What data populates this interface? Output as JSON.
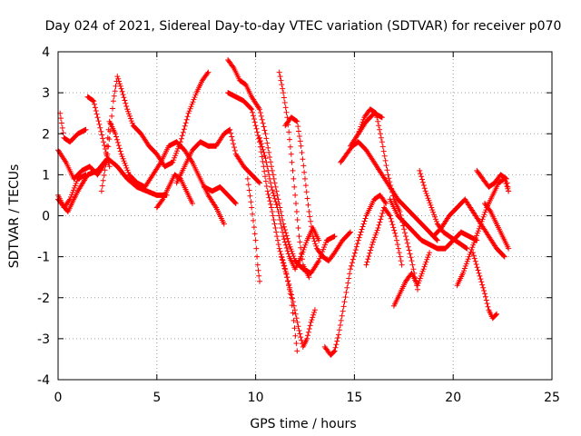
{
  "chart_data": {
    "type": "scatter",
    "title": "Day 024 of 2021, Sidereal Day-to-day VTEC variation (SDTVAR) for receiver p070",
    "xlabel": "GPS time / hours",
    "ylabel": "SDTVAR / TECUs",
    "xlim": [
      0,
      25
    ],
    "ylim": [
      -4,
      4
    ],
    "xticks": [
      0,
      5,
      10,
      15,
      20,
      25
    ],
    "yticks": [
      -4,
      -3,
      -2,
      -1,
      0,
      1,
      2,
      3,
      4
    ],
    "xtick_labels": [
      "0",
      "5",
      "10",
      "15",
      "20",
      "25"
    ],
    "ytick_labels": [
      "-4",
      "-3",
      "-2",
      "-1",
      "0",
      "1",
      "2",
      "3",
      "4"
    ],
    "grid": true,
    "marker": "+",
    "color": "#ff0000",
    "series": [
      {
        "name": "s1",
        "x": [
          0.0,
          0.4,
          0.8,
          1.2,
          1.6,
          2.0,
          2.4,
          2.6,
          2.9,
          3.2,
          3.6,
          4.0,
          4.4,
          4.8,
          5.2,
          5.6,
          6.0,
          6.4,
          6.8,
          7.2,
          7.6,
          8.0,
          8.4
        ],
        "y": [
          1.6,
          1.3,
          0.9,
          1.1,
          1.2,
          1.0,
          1.3,
          2.3,
          2.0,
          1.5,
          1.0,
          0.8,
          0.7,
          1.0,
          1.3,
          1.7,
          1.8,
          1.6,
          1.3,
          0.9,
          0.5,
          0.2,
          -0.2
        ]
      },
      {
        "name": "s2",
        "x": [
          0.0,
          0.3,
          0.6,
          1.0,
          1.4
        ],
        "y": [
          0.5,
          0.2,
          0.4,
          0.9,
          1.0
        ]
      },
      {
        "name": "s3",
        "x": [
          0.1,
          0.3,
          0.6,
          1.0,
          1.4
        ],
        "y": [
          2.5,
          1.9,
          1.8,
          2.0,
          2.1
        ]
      },
      {
        "name": "s4",
        "x": [
          0.0,
          0.5,
          1.0,
          1.5,
          2.0,
          2.5,
          3.0,
          3.5,
          4.0,
          4.5,
          5.0,
          5.5
        ],
        "y": [
          0.4,
          0.1,
          0.6,
          1.0,
          1.1,
          1.4,
          1.2,
          0.9,
          0.7,
          0.6,
          0.5,
          0.5
        ]
      },
      {
        "name": "s5",
        "x": [
          1.5,
          1.8,
          2.0,
          2.3,
          2.6
        ],
        "y": [
          2.9,
          2.8,
          2.4,
          1.8,
          1.2
        ]
      },
      {
        "name": "s6",
        "x": [
          2.2,
          2.5,
          2.8,
          3.0,
          3.2,
          3.5,
          3.8,
          4.2,
          4.6,
          5.0,
          5.4,
          5.8,
          6.2,
          6.6,
          7.0,
          7.3,
          7.6
        ],
        "y": [
          0.6,
          1.5,
          2.8,
          3.4,
          3.1,
          2.6,
          2.2,
          2.0,
          1.7,
          1.5,
          1.2,
          1.3,
          1.8,
          2.5,
          3.0,
          3.3,
          3.5
        ]
      },
      {
        "name": "s7",
        "x": [
          5.0,
          5.3,
          5.6,
          5.9,
          6.2,
          6.5,
          6.8
        ],
        "y": [
          0.2,
          0.4,
          0.7,
          1.0,
          0.9,
          0.6,
          0.3
        ]
      },
      {
        "name": "s8",
        "x": [
          6.0,
          6.4,
          6.8,
          7.2,
          7.6,
          8.0,
          8.4,
          8.7,
          9.0,
          9.4,
          9.8,
          10.2
        ],
        "y": [
          0.8,
          1.2,
          1.6,
          1.8,
          1.7,
          1.7,
          2.0,
          2.1,
          1.5,
          1.2,
          1.0,
          0.8
        ]
      },
      {
        "name": "s9",
        "x": [
          7.4,
          7.8,
          8.2,
          8.6,
          9.0
        ],
        "y": [
          0.7,
          0.6,
          0.7,
          0.5,
          0.3
        ]
      },
      {
        "name": "s10",
        "x": [
          8.6,
          8.9,
          9.2,
          9.5,
          9.8,
          10.2,
          10.5,
          10.8,
          11.1,
          11.4,
          11.7,
          12.0,
          12.4,
          12.8,
          13.2,
          13.6,
          14.0
        ],
        "y": [
          3.8,
          3.6,
          3.3,
          3.2,
          2.9,
          2.6,
          2.0,
          1.2,
          0.5,
          -0.2,
          -0.7,
          -1.1,
          -1.3,
          -1.4,
          -1.1,
          -0.6,
          -0.5
        ]
      },
      {
        "name": "s11",
        "x": [
          8.6,
          9.0,
          9.4,
          9.8,
          10.0,
          10.2,
          10.4,
          10.6,
          10.8,
          11.0,
          11.2,
          11.5,
          11.8,
          12.1
        ],
        "y": [
          3.0,
          2.9,
          2.8,
          2.6,
          2.2,
          1.8,
          1.2,
          0.6,
          0.2,
          -0.3,
          -0.8,
          -1.3,
          -2.0,
          -3.3
        ]
      },
      {
        "name": "s12",
        "x": [
          9.6,
          9.8,
          10.0,
          10.1,
          10.2
        ],
        "y": [
          0.9,
          0.2,
          -0.6,
          -1.2,
          -1.6
        ]
      },
      {
        "name": "s13",
        "x": [
          10.2,
          10.5,
          10.8,
          11.1,
          11.4,
          11.7,
          12.0,
          12.3,
          12.6,
          12.9,
          13.2
        ],
        "y": [
          1.9,
          1.4,
          0.7,
          0.2,
          -0.5,
          -1.0,
          -1.3,
          -1.0,
          -0.6,
          -0.3,
          -0.6
        ]
      },
      {
        "name": "s14",
        "x": [
          11.2,
          11.4,
          11.6,
          11.8,
          12.0,
          12.2,
          12.4,
          12.7
        ],
        "y": [
          3.5,
          3.0,
          2.4,
          1.5,
          0.5,
          -0.5,
          -1.2,
          -1.5
        ]
      },
      {
        "name": "s15",
        "x": [
          11.5,
          11.8,
          12.1,
          12.3,
          12.5,
          12.7,
          12.9,
          13.1,
          13.4,
          13.7,
          14.0,
          14.4,
          14.8
        ],
        "y": [
          2.2,
          2.4,
          2.3,
          1.7,
          0.9,
          0.1,
          -0.5,
          -0.8,
          -1.0,
          -1.1,
          -0.9,
          -0.6,
          -0.4
        ]
      },
      {
        "name": "s16",
        "x": [
          11.3,
          11.6,
          11.9,
          12.2,
          12.4,
          12.6,
          12.8,
          13.0
        ],
        "y": [
          -1.0,
          -1.5,
          -2.1,
          -2.8,
          -3.2,
          -3.0,
          -2.6,
          -2.3
        ]
      },
      {
        "name": "s17",
        "x": [
          13.5,
          13.8,
          14.0,
          14.2,
          14.5,
          14.8,
          15.2,
          15.6,
          16.0,
          16.3,
          16.6
        ],
        "y": [
          -3.2,
          -3.4,
          -3.3,
          -2.9,
          -2.1,
          -1.3,
          -0.6,
          0.0,
          0.4,
          0.5,
          0.3
        ]
      },
      {
        "name": "s18",
        "x": [
          14.3,
          14.6,
          14.9,
          15.2,
          15.6,
          16.0,
          16.4,
          16.8,
          17.2,
          17.6,
          18.0,
          18.4,
          18.8,
          19.2
        ],
        "y": [
          1.3,
          1.5,
          1.7,
          1.8,
          1.6,
          1.3,
          1.0,
          0.7,
          0.4,
          0.2,
          0.0,
          -0.2,
          -0.4,
          -0.6
        ]
      },
      {
        "name": "s19",
        "x": [
          15.2,
          15.5,
          15.8,
          16.1,
          16.4,
          16.7,
          17.0,
          17.3,
          17.6,
          17.9,
          18.2
        ],
        "y": [
          2.0,
          2.4,
          2.6,
          2.5,
          1.8,
          1.0,
          0.4,
          0.1,
          -0.5,
          -1.1,
          -1.8
        ]
      },
      {
        "name": "s20",
        "x": [
          14.8,
          15.2,
          15.6,
          16.0,
          16.4
        ],
        "y": [
          1.7,
          2.0,
          2.3,
          2.5,
          2.4
        ]
      },
      {
        "name": "s21",
        "x": [
          15.6,
          15.9,
          16.2,
          16.5,
          16.8,
          17.1,
          17.4
        ],
        "y": [
          -1.2,
          -0.7,
          -0.3,
          0.2,
          0.0,
          -0.5,
          -1.2
        ]
      },
      {
        "name": "s22",
        "x": [
          17.0,
          17.3,
          17.6,
          17.9,
          18.2,
          18.5,
          18.8
        ],
        "y": [
          -2.2,
          -1.9,
          -1.6,
          -1.4,
          -1.7,
          -1.3,
          -0.9
        ]
      },
      {
        "name": "s23",
        "x": [
          16.8,
          17.2,
          17.6,
          18.0,
          18.4,
          18.8,
          19.2,
          19.6,
          20.0,
          20.4,
          20.8,
          21.2
        ],
        "y": [
          0.4,
          0.0,
          -0.2,
          -0.4,
          -0.6,
          -0.7,
          -0.8,
          -0.8,
          -0.6,
          -0.4,
          -0.5,
          -0.6
        ]
      },
      {
        "name": "s24",
        "x": [
          18.3,
          18.6,
          18.9,
          19.2,
          19.5,
          19.8,
          20.1,
          20.4,
          20.7
        ],
        "y": [
          1.1,
          0.6,
          0.2,
          -0.2,
          -0.4,
          -0.5,
          -0.6,
          -0.7,
          -0.8
        ]
      },
      {
        "name": "s25",
        "x": [
          19.0,
          19.4,
          19.8,
          20.2,
          20.6,
          21.0,
          21.4,
          21.8,
          22.2,
          22.6
        ],
        "y": [
          -0.5,
          -0.3,
          0.0,
          0.2,
          0.4,
          0.1,
          -0.2,
          -0.5,
          -0.8,
          -1.0
        ]
      },
      {
        "name": "s26",
        "x": [
          20.2,
          20.5,
          20.8,
          21.1,
          21.4,
          21.7,
          22.0,
          22.3,
          22.6,
          22.8
        ],
        "y": [
          -1.7,
          -1.4,
          -1.0,
          -0.6,
          -0.2,
          0.2,
          0.5,
          0.8,
          0.9,
          0.6
        ]
      },
      {
        "name": "s27",
        "x": [
          21.2,
          21.5,
          21.8,
          22.1,
          22.4,
          22.7,
          22.8
        ],
        "y": [
          1.1,
          0.9,
          0.7,
          0.8,
          1.0,
          0.9,
          0.6
        ]
      },
      {
        "name": "s28",
        "x": [
          21.0,
          21.3,
          21.6,
          21.8,
          22.0,
          22.2
        ],
        "y": [
          -0.9,
          -1.4,
          -1.9,
          -2.3,
          -2.5,
          -2.4
        ]
      },
      {
        "name": "s29",
        "x": [
          21.6,
          21.9,
          22.2,
          22.5,
          22.8
        ],
        "y": [
          0.3,
          0.1,
          -0.2,
          -0.5,
          -0.8
        ]
      }
    ]
  }
}
